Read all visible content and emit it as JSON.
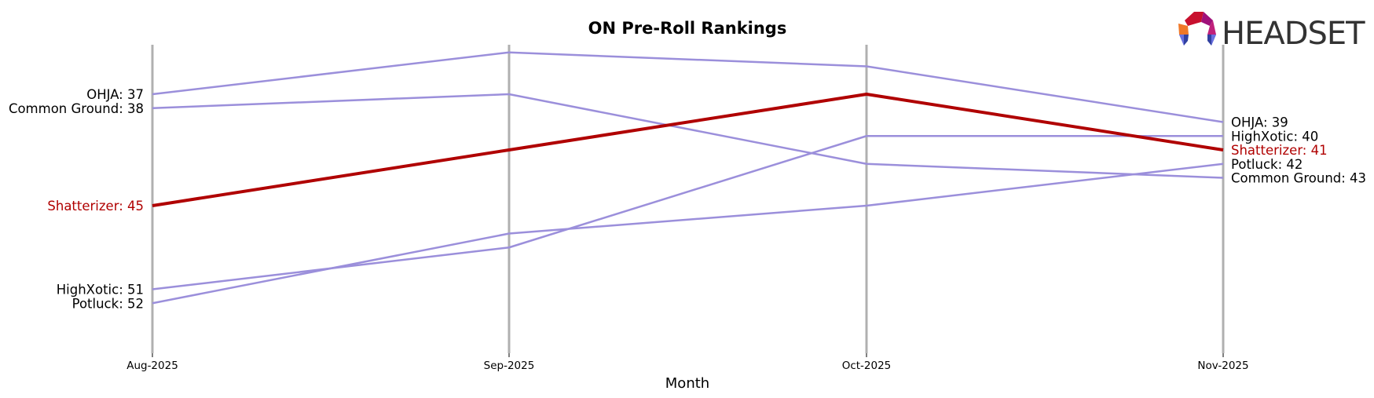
{
  "chart_data": {
    "type": "line",
    "subtype": "bump",
    "title": "ON Pre-Roll Rankings",
    "xlabel": "Month",
    "ylabel": "",
    "categories": [
      "Aug-2025",
      "Sep-2025",
      "Oct-2025",
      "Nov-2025"
    ],
    "y_inverted": true,
    "grid": "vertical lines at each month",
    "legend": "none (inline labels at start and end)",
    "series": [
      {
        "name": "OHJA",
        "values": [
          37,
          34,
          35,
          39
        ],
        "color": "#9b8fdb",
        "highlight": false
      },
      {
        "name": "Common Ground",
        "values": [
          38,
          37,
          42,
          43
        ],
        "color": "#9b8fdb",
        "highlight": false
      },
      {
        "name": "Shatterizer",
        "values": [
          45,
          41,
          37,
          41
        ],
        "color": "#b00000",
        "highlight": true
      },
      {
        "name": "HighXotic",
        "values": [
          51,
          48,
          40,
          40
        ],
        "color": "#9b8fdb",
        "highlight": false
      },
      {
        "name": "Potluck",
        "values": [
          52,
          47,
          45,
          42
        ],
        "color": "#9b8fdb",
        "highlight": false
      }
    ],
    "start_labels": [
      "OHJA: 37",
      "Common Ground: 38",
      "Shatterizer: 45",
      "HighXotic: 51",
      "Potluck: 52"
    ],
    "end_labels": [
      "OHJA: 39",
      "HighXotic: 40",
      "Shatterizer: 41",
      "Potluck: 42",
      "Common Ground: 43"
    ]
  },
  "brand": {
    "logo_text": "HEADSET"
  },
  "colors": {
    "highlight": "#b00000",
    "other": "#9b8fdb",
    "grid": "#b0b0b0"
  }
}
